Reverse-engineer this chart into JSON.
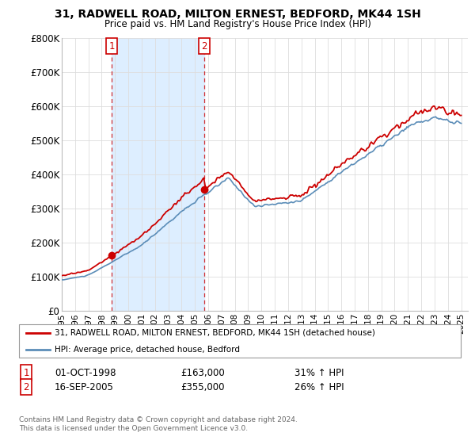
{
  "title": "31, RADWELL ROAD, MILTON ERNEST, BEDFORD, MK44 1SH",
  "subtitle": "Price paid vs. HM Land Registry's House Price Index (HPI)",
  "legend_label_red": "31, RADWELL ROAD, MILTON ERNEST, BEDFORD, MK44 1SH (detached house)",
  "legend_label_blue": "HPI: Average price, detached house, Bedford",
  "t1_year": 1998.75,
  "t1_price": 163000,
  "t1_date": "01-OCT-1998",
  "t1_hpi": "31% ↑ HPI",
  "t2_year": 2005.7,
  "t2_price": 355000,
  "t2_date": "16-SEP-2005",
  "t2_hpi": "26% ↑ HPI",
  "footer1": "Contains HM Land Registry data © Crown copyright and database right 2024.",
  "footer2": "This data is licensed under the Open Government Licence v3.0.",
  "ylim": [
    0,
    800000
  ],
  "yticks": [
    0,
    100000,
    200000,
    300000,
    400000,
    500000,
    600000,
    700000,
    800000
  ],
  "ytick_labels": [
    "£0",
    "£100K",
    "£200K",
    "£300K",
    "£400K",
    "£500K",
    "£600K",
    "£700K",
    "£800K"
  ],
  "xmin": 1995,
  "xmax": 2025.5,
  "red_color": "#cc0000",
  "blue_color": "#5b8db8",
  "shade_color": "#ddeeff",
  "bg_color": "#ffffff",
  "grid_color": "#dddddd"
}
